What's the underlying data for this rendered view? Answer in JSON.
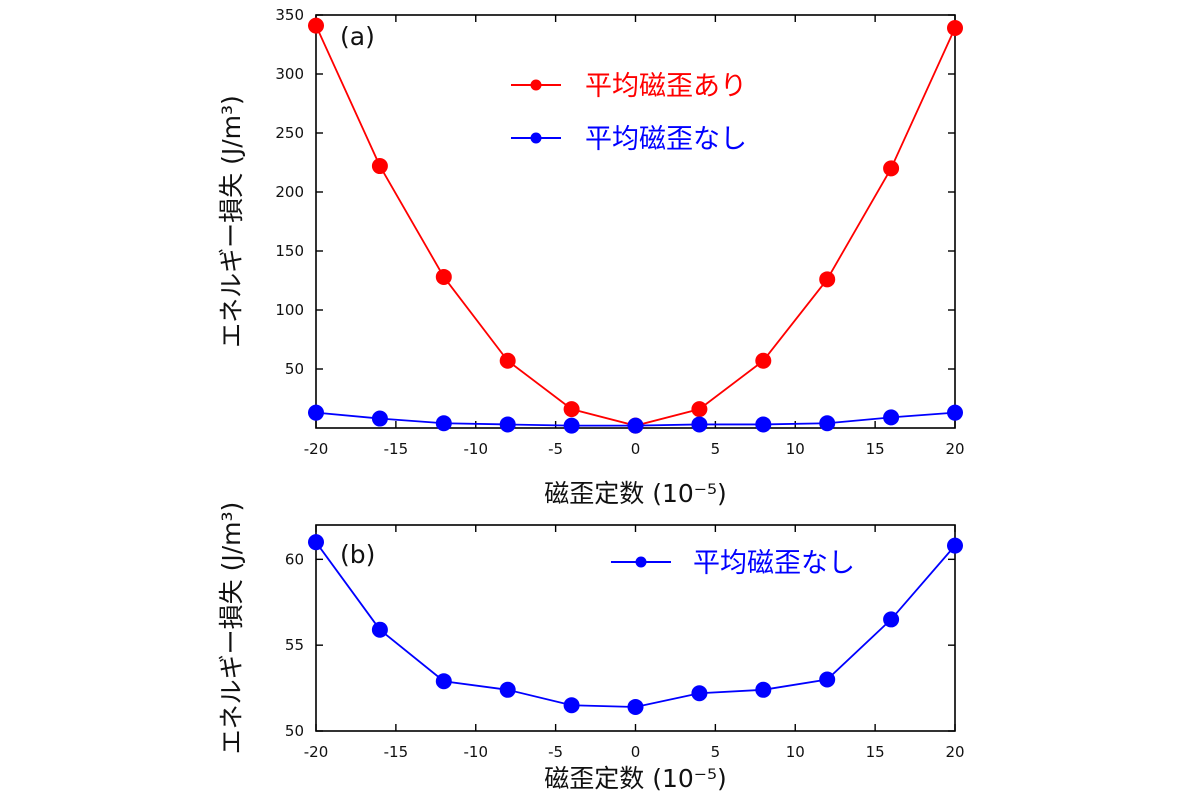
{
  "chart_data": [
    {
      "type": "line",
      "panel_label": "(a)",
      "xlabel": "磁歪定数 (10⁻⁵)",
      "ylabel": "エネルギー損失 (J/m³)",
      "xlim": [
        -20,
        20
      ],
      "ylim": [
        0,
        350
      ],
      "xticks": [
        -20,
        -15,
        -10,
        -5,
        0,
        5,
        10,
        15,
        20
      ],
      "xtick_labels": [
        "-20",
        "-15",
        "-10",
        "-5",
        "0",
        "5",
        "10",
        "15",
        "20"
      ],
      "yticks": [
        50,
        100,
        150,
        200,
        250,
        300,
        350
      ],
      "ytick_labels": [
        "50",
        "100",
        "150",
        "200",
        "250",
        "300",
        "350"
      ],
      "legend_position": "top-center",
      "x": [
        -20,
        -16,
        -12,
        -8,
        -4,
        0,
        4,
        8,
        12,
        16,
        20
      ],
      "series": [
        {
          "name": "平均磁歪あり",
          "color": "#ff0000",
          "values": [
            341,
            222,
            128,
            57,
            16,
            2,
            16,
            57,
            126,
            220,
            339
          ]
        },
        {
          "name": "平均磁歪なし",
          "color": "#0000ff",
          "values": [
            13,
            8,
            4,
            3,
            2,
            2,
            3,
            3,
            4,
            9,
            13
          ]
        }
      ]
    },
    {
      "type": "line",
      "panel_label": "(b)",
      "xlabel": "磁歪定数 (10⁻⁵)",
      "ylabel": "エネルギー損失 (J/m³)",
      "xlim": [
        -20,
        20
      ],
      "ylim": [
        50,
        62
      ],
      "xticks": [
        -20,
        -15,
        -10,
        -5,
        0,
        5,
        10,
        15,
        20
      ],
      "xtick_labels": [
        "-20",
        "-15",
        "-10",
        "-5",
        "0",
        "5",
        "10",
        "15",
        "20"
      ],
      "yticks": [
        50,
        55,
        60
      ],
      "ytick_labels": [
        "50",
        "55",
        "60"
      ],
      "legend_position": "top-right",
      "x": [
        -20,
        -16,
        -12,
        -8,
        -4,
        0,
        4,
        8,
        12,
        16,
        20
      ],
      "series": [
        {
          "name": "平均磁歪なし",
          "color": "#0000ff",
          "values": [
            61.0,
            55.9,
            52.9,
            52.4,
            51.5,
            51.4,
            52.2,
            52.4,
            53.0,
            56.5,
            60.8
          ]
        }
      ]
    }
  ]
}
